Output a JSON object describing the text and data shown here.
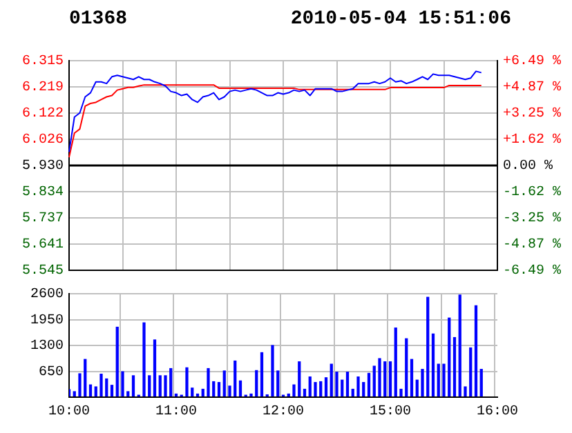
{
  "chart_data": [
    {
      "type": "line",
      "title": "01368",
      "subtitle": "2010-05-04 15:51:06",
      "series": [
        {
          "color": "#0000ff",
          "values": [
            5.98,
            6.108,
            6.123,
            6.182,
            6.197,
            6.237,
            6.237,
            6.231,
            6.256,
            6.261,
            6.256,
            6.251,
            6.246,
            6.256,
            6.246,
            6.246,
            6.237,
            6.231,
            6.222,
            6.202,
            6.197,
            6.187,
            6.192,
            6.172,
            6.162,
            6.182,
            6.187,
            6.197,
            6.172,
            6.182,
            6.202,
            6.207,
            6.202,
            6.207,
            6.212,
            6.207,
            6.197,
            6.187,
            6.187,
            6.197,
            6.192,
            6.197,
            6.207,
            6.202,
            6.207,
            6.187,
            6.212,
            6.212,
            6.212,
            6.212,
            6.202,
            6.202,
            6.207,
            6.212,
            6.231,
            6.231,
            6.231,
            6.237,
            6.231,
            6.237,
            6.251,
            6.237,
            6.241,
            6.231,
            6.237,
            6.246,
            6.256,
            6.246,
            6.266,
            6.261,
            6.261,
            6.261,
            6.256,
            6.251,
            6.246,
            6.251,
            6.276,
            6.271,
            null,
            null,
            null
          ]
        },
        {
          "color": "#ff0000",
          "values": [
            5.96,
            6.049,
            6.064,
            6.148,
            6.158,
            6.162,
            6.172,
            6.182,
            6.187,
            6.207,
            6.212,
            6.217,
            6.217,
            6.222,
            6.226,
            6.226,
            6.226,
            6.226,
            6.226,
            6.226,
            6.226,
            6.226,
            6.226,
            6.226,
            6.226,
            6.226,
            6.226,
            6.226,
            6.214,
            6.214,
            6.214,
            6.214,
            6.214,
            6.214,
            6.214,
            6.214,
            6.214,
            6.214,
            6.214,
            6.214,
            6.214,
            6.214,
            6.214,
            6.209,
            6.209,
            6.209,
            6.209,
            6.209,
            6.209,
            6.209,
            6.209,
            6.209,
            6.209,
            6.209,
            6.209,
            6.209,
            6.209,
            6.209,
            6.209,
            6.209,
            6.216,
            6.216,
            6.216,
            6.216,
            6.216,
            6.216,
            6.216,
            6.216,
            6.216,
            6.216,
            6.216,
            6.224,
            6.224,
            6.224,
            6.224,
            6.224,
            6.224,
            6.224,
            null,
            null,
            null
          ]
        }
      ],
      "ylim": [
        5.545,
        6.315
      ],
      "yticks": [
        {
          "value": 5.545,
          "label": "5.545"
        },
        {
          "value": 5.641,
          "label": "5.641"
        },
        {
          "value": 5.737,
          "label": "5.737"
        },
        {
          "value": 5.834,
          "label": "5.834"
        },
        {
          "value": 5.93,
          "label": "5.930"
        },
        {
          "value": 6.026,
          "label": "6.026"
        },
        {
          "value": 6.122,
          "label": "6.122"
        },
        {
          "value": 6.219,
          "label": "6.219"
        },
        {
          "value": 6.315,
          "label": "6.315"
        }
      ],
      "y2lim": [
        -6.49,
        6.49
      ],
      "y2ticks": [
        {
          "value": -6.49,
          "label": "-6.49 %"
        },
        {
          "value": -4.87,
          "label": "-4.87 %"
        },
        {
          "value": -3.25,
          "label": "-3.25 %"
        },
        {
          "value": -1.62,
          "label": "-1.62 %"
        },
        {
          "value": 0,
          "label": "0.00 %"
        },
        {
          "value": 1.62,
          "label": "+1.62 %"
        },
        {
          "value": 3.25,
          "label": "+3.25 %"
        },
        {
          "value": 4.87,
          "label": "+4.87 %"
        },
        {
          "value": 6.49,
          "label": "+6.49 %"
        }
      ],
      "ref_lines": [
        {
          "axis": "y",
          "value": 5.93,
          "color": "#000000"
        }
      ],
      "grid": true,
      "legend": false,
      "marker": "none",
      "line_style": "solid",
      "tick_labels": "y"
    },
    {
      "type": "bar",
      "categories": [
        "10:00",
        null,
        null,
        null,
        null,
        null,
        null,
        null,
        null,
        null,
        null,
        null,
        null,
        null,
        null,
        null,
        null,
        null,
        null,
        null,
        "11:00",
        null,
        null,
        null,
        null,
        null,
        null,
        null,
        null,
        null,
        null,
        null,
        null,
        null,
        null,
        null,
        null,
        null,
        null,
        null,
        "12:00",
        null,
        null,
        null,
        null,
        null,
        null,
        null,
        null,
        null,
        null,
        null,
        null,
        null,
        null,
        null,
        null,
        null,
        null,
        null,
        "15:00",
        null,
        null,
        null,
        null,
        null,
        null,
        null,
        null,
        null,
        null,
        null,
        null,
        null,
        null,
        null,
        null,
        null,
        null,
        null,
        "16:00"
      ],
      "color": "#0000ff",
      "values": [
        200,
        150,
        600,
        960,
        320,
        270,
        590,
        470,
        310,
        1770,
        650,
        150,
        550,
        60,
        1880,
        550,
        1450,
        550,
        550,
        730,
        90,
        60,
        750,
        240,
        90,
        210,
        730,
        400,
        380,
        670,
        290,
        920,
        420,
        60,
        90,
        680,
        1130,
        70,
        1310,
        670,
        60,
        90,
        320,
        900,
        210,
        520,
        380,
        400,
        500,
        840,
        640,
        440,
        640,
        210,
        520,
        380,
        610,
        790,
        980,
        900,
        900,
        1750,
        210,
        1480,
        960,
        440,
        710,
        2520,
        1600,
        840,
        840,
        2000,
        1510,
        2580,
        270,
        1250,
        2310,
        710,
        null,
        null,
        null
      ],
      "ylim": [
        0,
        2600
      ],
      "yticks": [
        650,
        1300,
        1950,
        2600
      ],
      "grid": true,
      "legend": false
    }
  ]
}
